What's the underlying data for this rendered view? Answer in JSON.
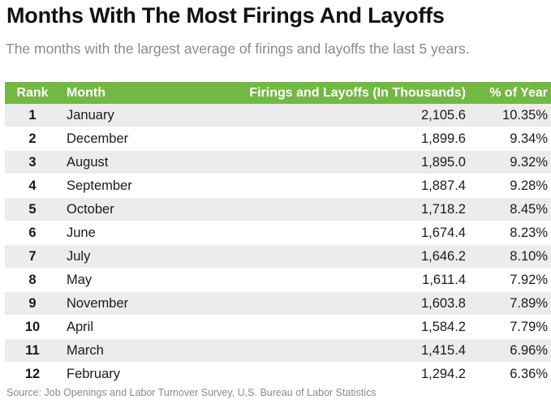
{
  "title": "Months With The Most Firings And Layoffs",
  "subtitle": "The months with the largest average of firings and layoffs the last 5 years.",
  "source": "Source: Job Openings and Labor Turnover Survey, U.S. Bureau of Labor Statistics",
  "colors": {
    "header_bg": "#72b843",
    "header_text": "#ffffff",
    "stripe": "#ececec",
    "subtitle_text": "#8a8a8a"
  },
  "chart_data": {
    "type": "table",
    "title": "Months With The Most Firings And Layoffs",
    "subtitle": "The months with the largest average of firings and layoffs the last 5 years.",
    "columns": [
      "Rank",
      "Month",
      "Firings and Layoffs (In Thousands)",
      "% of Year"
    ],
    "rows": [
      [
        "1",
        "January",
        "2,105.6",
        "10.35%"
      ],
      [
        "2",
        "December",
        "1,899.6",
        "9.34%"
      ],
      [
        "3",
        "August",
        "1,895.0",
        "9.32%"
      ],
      [
        "4",
        "September",
        "1,887.4",
        "9.28%"
      ],
      [
        "5",
        "October",
        "1,718.2",
        "8.45%"
      ],
      [
        "6",
        "June",
        "1,674.4",
        "8.23%"
      ],
      [
        "7",
        "July",
        "1,646.2",
        "8.10%"
      ],
      [
        "8",
        "May",
        "1,611.4",
        "7.92%"
      ],
      [
        "9",
        "November",
        "1,603.8",
        "7.89%"
      ],
      [
        "10",
        "April",
        "1,584.2",
        "7.79%"
      ],
      [
        "11",
        "March",
        "1,415.4",
        "6.96%"
      ],
      [
        "12",
        "February",
        "1,294.2",
        "6.36%"
      ]
    ],
    "source": "Source: Job Openings and Labor Turnover Survey, U.S. Bureau of Labor Statistics"
  }
}
